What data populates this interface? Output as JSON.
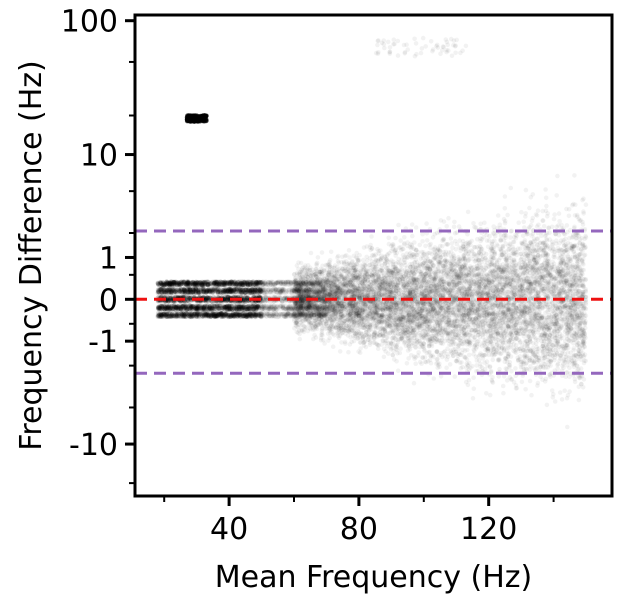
{
  "chart_data": {
    "type": "scatter",
    "title": "",
    "xlabel": "Mean Frequency (Hz)",
    "ylabel": "Frequency Difference (Hz)",
    "x_scale": "linear",
    "y_scale": "symlog",
    "y_linthresh": 1,
    "xlim": [
      11,
      158
    ],
    "ylim": [
      -25,
      110
    ],
    "x_ticks": [
      40,
      80,
      120
    ],
    "x_ticklabels": [
      "40",
      "80",
      "120"
    ],
    "y_ticks": [
      -10,
      -1,
      0,
      1,
      10,
      100
    ],
    "y_ticklabels": [
      "-10",
      "-1",
      "0",
      "1",
      "10",
      "100"
    ],
    "grid": false,
    "legend": "none",
    "point_color": "#000000",
    "point_alpha": 0.05,
    "reference_lines": [
      {
        "y": 0,
        "color": "#ee1111",
        "style": "dashed"
      },
      {
        "y": 2.1,
        "color": "#9467bd",
        "style": "dashed"
      },
      {
        "y": -2.4,
        "color": "#9467bd",
        "style": "dashed"
      }
    ],
    "series": [
      {
        "point_groups": [
          {
            "x_range": [
              18,
              50
            ],
            "y_range": [
              -0.35,
              0.4
            ],
            "count": 2500,
            "note": "dense low-frequency band"
          },
          {
            "x_range": [
              50,
              70
            ],
            "y_range": [
              -0.6,
              0.6
            ],
            "count": 1000
          },
          {
            "x_range": [
              60,
              150
            ],
            "y_range": [
              -12,
              14
            ],
            "count": 9000,
            "note": "fan spreading with frequency"
          },
          {
            "x_range": [
              27,
              33
            ],
            "y_range": [
              18,
              20
            ],
            "count": 200,
            "note": "isolated cluster near 20 Hz difference"
          },
          {
            "x_range": [
              85,
              113
            ],
            "y_range": [
              55,
              75
            ],
            "count": 60,
            "note": "sparse outliers near top"
          }
        ]
      }
    ]
  }
}
